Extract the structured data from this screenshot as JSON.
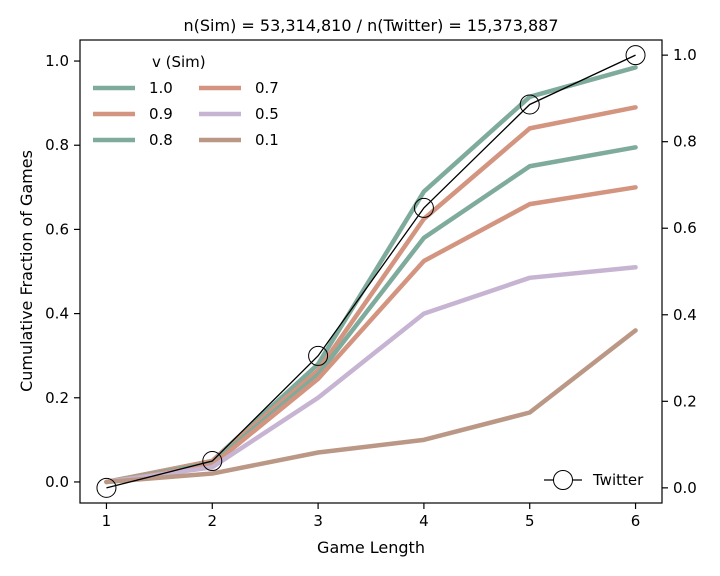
{
  "chart_data": {
    "type": "line",
    "title": "n(Sim) = 53,314,810 / n(Twitter) = 15,373,887",
    "xlabel": "Game Length",
    "ylabel": "Cumulative Fraction of Games",
    "x": [
      1,
      2,
      3,
      4,
      5,
      6
    ],
    "xlim": [
      0.75,
      6.25
    ],
    "ylim": [
      -0.05,
      1.05
    ],
    "right_ylim": [
      -0.035,
      1.035
    ],
    "xticks": [
      "1",
      "2",
      "3",
      "4",
      "5",
      "6"
    ],
    "yticks": [
      "0.0",
      "0.2",
      "0.4",
      "0.6",
      "0.8",
      "1.0"
    ],
    "right_yticks": [
      "0.0",
      "0.2",
      "0.4",
      "0.6",
      "0.8",
      "1.0"
    ],
    "grid": false,
    "legend": {
      "title": "v (Sim)",
      "placement": "top-left",
      "columns": 2
    },
    "series": [
      {
        "name": "1.0",
        "color": "#7fab9c",
        "values": [
          0.0,
          0.05,
          0.28,
          0.69,
          0.915,
          0.985
        ]
      },
      {
        "name": "0.9",
        "color": "#d39480",
        "values": [
          0.0,
          0.05,
          0.265,
          0.625,
          0.84,
          0.89
        ]
      },
      {
        "name": "0.8",
        "color": "#7fab9c",
        "values": [
          0.0,
          0.045,
          0.255,
          0.58,
          0.75,
          0.795
        ]
      },
      {
        "name": "0.7",
        "color": "#d39480",
        "values": [
          0.0,
          0.04,
          0.245,
          0.525,
          0.66,
          0.7
        ]
      },
      {
        "name": "0.5",
        "color": "#c6b4d2",
        "values": [
          0.0,
          0.035,
          0.2,
          0.4,
          0.485,
          0.51
        ]
      },
      {
        "name": "0.1",
        "color": "#bb9886",
        "values": [
          0.0,
          0.02,
          0.07,
          0.1,
          0.165,
          0.36
        ]
      }
    ],
    "reference_series": {
      "name": "Twitter",
      "axis": "right",
      "color": "#000000",
      "marker": "open-circle",
      "values": [
        0.0,
        0.062,
        0.305,
        0.647,
        0.886,
        1.0
      ]
    },
    "reference_legend": {
      "label": "Twitter",
      "placement": "bottom-right"
    }
  }
}
